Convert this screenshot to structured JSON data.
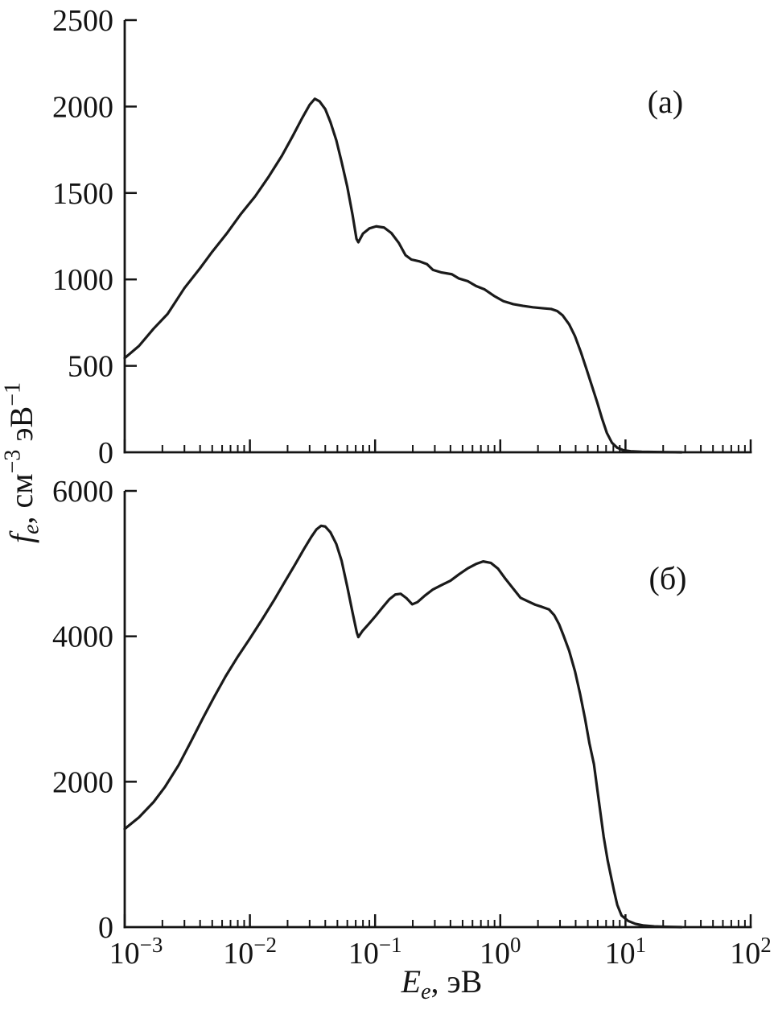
{
  "figure": {
    "background": "#ffffff",
    "ink_color": "#141414",
    "curve_color": "#1a1a1a"
  },
  "labels": {
    "xlabel_text": "Ee, эВ",
    "xlabel_segments": [
      {
        "t": "E",
        "s": "i"
      },
      {
        "t": "e",
        "s": "isub"
      },
      {
        "t": ", эВ",
        "s": "n"
      }
    ],
    "ylabel_text": "fe, см−3 эВ−1",
    "ylabel_segments": [
      {
        "t": "f",
        "s": "i"
      },
      {
        "t": "e",
        "s": "isub"
      },
      {
        "t": ", см",
        "s": "n"
      },
      {
        "t": "−3",
        "s": "sup"
      },
      {
        "t": " эВ",
        "s": "n"
      },
      {
        "t": "−1",
        "s": "sup"
      }
    ]
  },
  "chart_data": [
    {
      "type": "line",
      "panel_label": "(а)",
      "xscale": "log",
      "xlim": [
        0.001,
        100
      ],
      "xtick_exponents": [
        -3,
        -2,
        -1,
        0,
        1,
        2
      ],
      "x_minor_ticks": "mantissas 2-9 each decade",
      "show_x_tick_labels": false,
      "ylim": [
        0,
        2500
      ],
      "yticks": [
        0,
        500,
        1000,
        1500,
        2000,
        2500
      ],
      "grid": false,
      "legend": "none",
      "series": [
        {
          "points": [
            [
              0.001,
              545
            ],
            [
              0.0013,
              615
            ],
            [
              0.0017,
              715
            ],
            [
              0.0022,
              800
            ],
            [
              0.003,
              950
            ],
            [
              0.004,
              1065
            ],
            [
              0.005,
              1160
            ],
            [
              0.0066,
              1270
            ],
            [
              0.0085,
              1380
            ],
            [
              0.011,
              1480
            ],
            [
              0.014,
              1590
            ],
            [
              0.018,
              1715
            ],
            [
              0.022,
              1830
            ],
            [
              0.026,
              1930
            ],
            [
              0.03,
              2010
            ],
            [
              0.033,
              2045
            ],
            [
              0.036,
              2030
            ],
            [
              0.04,
              1985
            ],
            [
              0.044,
              1910
            ],
            [
              0.049,
              1805
            ],
            [
              0.054,
              1680
            ],
            [
              0.06,
              1535
            ],
            [
              0.066,
              1375
            ],
            [
              0.071,
              1235
            ],
            [
              0.0735,
              1215
            ],
            [
              0.08,
              1265
            ],
            [
              0.09,
              1295
            ],
            [
              0.102,
              1307
            ],
            [
              0.118,
              1300
            ],
            [
              0.135,
              1268
            ],
            [
              0.155,
              1210
            ],
            [
              0.175,
              1140
            ],
            [
              0.195,
              1115
            ],
            [
              0.225,
              1105
            ],
            [
              0.26,
              1088
            ],
            [
              0.29,
              1055
            ],
            [
              0.34,
              1040
            ],
            [
              0.41,
              1030
            ],
            [
              0.465,
              1006
            ],
            [
              0.55,
              990
            ],
            [
              0.64,
              962
            ],
            [
              0.75,
              942
            ],
            [
              0.89,
              905
            ],
            [
              1.06,
              874
            ],
            [
              1.27,
              857
            ],
            [
              1.52,
              847
            ],
            [
              1.82,
              839
            ],
            [
              2.2,
              833
            ],
            [
              2.55,
              829
            ],
            [
              2.85,
              817
            ],
            [
              3.15,
              792
            ],
            [
              3.55,
              740
            ],
            [
              3.95,
              672
            ],
            [
              4.4,
              580
            ],
            [
              4.9,
              478
            ],
            [
              5.4,
              383
            ],
            [
              5.95,
              288
            ],
            [
              6.5,
              195
            ],
            [
              7.1,
              112
            ],
            [
              7.8,
              55
            ],
            [
              8.6,
              26
            ],
            [
              9.6,
              12
            ],
            [
              11,
              6
            ],
            [
              13.5,
              3
            ],
            [
              17,
              2
            ],
            [
              22,
              1
            ],
            [
              28,
              0
            ]
          ]
        }
      ]
    },
    {
      "type": "line",
      "panel_label": "(б)",
      "xscale": "log",
      "xlim": [
        0.001,
        100
      ],
      "xtick_exponents": [
        -3,
        -2,
        -1,
        0,
        1,
        2
      ],
      "x_minor_ticks": "mantissas 2-9 each decade",
      "show_x_tick_labels": true,
      "ylim": [
        0,
        6000
      ],
      "yticks": [
        0,
        2000,
        4000,
        6000
      ],
      "grid": false,
      "legend": "none",
      "series": [
        {
          "points": [
            [
              0.001,
              1350
            ],
            [
              0.0013,
              1510
            ],
            [
              0.0017,
              1720
            ],
            [
              0.0021,
              1930
            ],
            [
              0.0027,
              2230
            ],
            [
              0.0034,
              2560
            ],
            [
              0.0042,
              2870
            ],
            [
              0.0052,
              3170
            ],
            [
              0.0064,
              3450
            ],
            [
              0.008,
              3720
            ],
            [
              0.01,
              3970
            ],
            [
              0.0125,
              4230
            ],
            [
              0.0155,
              4490
            ],
            [
              0.019,
              4750
            ],
            [
              0.023,
              4990
            ],
            [
              0.027,
              5200
            ],
            [
              0.031,
              5370
            ],
            [
              0.034,
              5470
            ],
            [
              0.037,
              5520
            ],
            [
              0.04,
              5510
            ],
            [
              0.044,
              5430
            ],
            [
              0.049,
              5270
            ],
            [
              0.054,
              5040
            ],
            [
              0.06,
              4680
            ],
            [
              0.066,
              4330
            ],
            [
              0.0715,
              4050
            ],
            [
              0.0735,
              3990
            ],
            [
              0.079,
              4070
            ],
            [
              0.089,
              4170
            ],
            [
              0.101,
              4280
            ],
            [
              0.115,
              4400
            ],
            [
              0.13,
              4510
            ],
            [
              0.145,
              4575
            ],
            [
              0.16,
              4585
            ],
            [
              0.178,
              4525
            ],
            [
              0.198,
              4440
            ],
            [
              0.218,
              4470
            ],
            [
              0.25,
              4560
            ],
            [
              0.29,
              4645
            ],
            [
              0.34,
              4705
            ],
            [
              0.4,
              4765
            ],
            [
              0.47,
              4855
            ],
            [
              0.55,
              4935
            ],
            [
              0.64,
              4995
            ],
            [
              0.73,
              5030
            ],
            [
              0.84,
              5010
            ],
            [
              0.96,
              4930
            ],
            [
              1.1,
              4790
            ],
            [
              1.27,
              4655
            ],
            [
              1.45,
              4530
            ],
            [
              1.67,
              4480
            ],
            [
              1.9,
              4435
            ],
            [
              2.15,
              4405
            ],
            [
              2.45,
              4370
            ],
            [
              2.7,
              4290
            ],
            [
              2.95,
              4165
            ],
            [
              3.2,
              4010
            ],
            [
              3.55,
              3800
            ],
            [
              3.95,
              3520
            ],
            [
              4.35,
              3200
            ],
            [
              4.75,
              2870
            ],
            [
              5.15,
              2530
            ],
            [
              5.6,
              2240
            ],
            [
              6.1,
              1760
            ],
            [
              6.7,
              1240
            ],
            [
              7.2,
              920
            ],
            [
              7.7,
              680
            ],
            [
              8.1,
              500
            ],
            [
              8.6,
              305
            ],
            [
              9.3,
              160
            ],
            [
              10.5,
              85
            ],
            [
              12,
              45
            ],
            [
              14,
              22
            ],
            [
              17,
              10
            ],
            [
              21,
              4
            ],
            [
              28,
              0
            ]
          ]
        }
      ]
    }
  ]
}
